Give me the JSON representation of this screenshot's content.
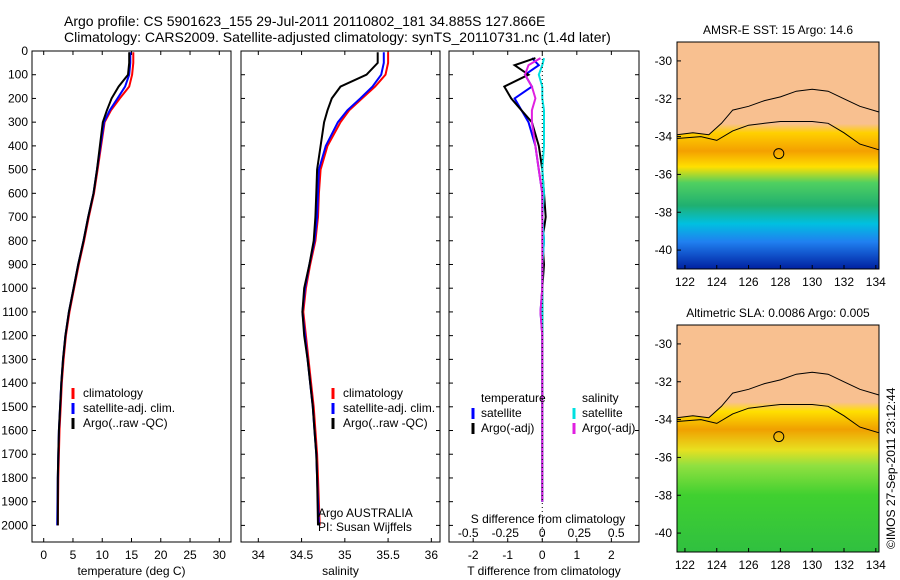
{
  "header": {
    "line1": "Argo profile: CS 5901623_155 29-Jul-2011 20110802_181 34.885S 127.866E",
    "line2": "Climatology: CARS2009. Satellite-adjusted climatology: synTS_20110731.nc (1.4d later)"
  },
  "stamp": "©IMOS 27-Sep-2011 23:12:44",
  "chart_data": [
    {
      "type": "line",
      "panel": "temperature",
      "xlabel": "temperature (deg C)",
      "ylabel": "",
      "xlim": [
        -2,
        32
      ],
      "ylim": [
        2070,
        0
      ],
      "xticks": [
        "0",
        "5",
        "10",
        "15",
        "20",
        "25",
        "30"
      ],
      "xtick_values": [
        0,
        5,
        10,
        15,
        20,
        25,
        30
      ],
      "yticks": [
        "0",
        "100",
        "200",
        "300",
        "400",
        "500",
        "600",
        "700",
        "800",
        "900",
        "1000",
        "1100",
        "1200",
        "1300",
        "1400",
        "1500",
        "1600",
        "1700",
        "1800",
        "1900",
        "2000"
      ],
      "ytick_values": [
        0,
        100,
        200,
        300,
        400,
        500,
        600,
        700,
        800,
        900,
        1000,
        1100,
        1200,
        1300,
        1400,
        1500,
        1600,
        1700,
        1800,
        1900,
        2000
      ],
      "legend": [
        "climatology",
        "satellite-adj. clim.",
        "Argo(..raw -QC)"
      ],
      "series": [
        {
          "color": "#ff0000",
          "x": [
            15.3,
            15.3,
            15.1,
            14.6,
            13.0,
            11.5,
            10.4,
            9.8,
            9.2,
            8.6,
            7.7,
            6.9,
            6.0,
            5.2,
            4.4,
            3.8,
            3.4,
            3.1,
            2.9,
            2.7,
            2.6,
            2.5,
            2.4
          ],
          "y": [
            5,
            50,
            100,
            150,
            200,
            250,
            300,
            400,
            500,
            600,
            700,
            800,
            900,
            1000,
            1100,
            1200,
            1300,
            1400,
            1500,
            1600,
            1700,
            1800,
            2000
          ]
        },
        {
          "color": "#0000ff",
          "x": [
            14.8,
            14.8,
            14.6,
            13.9,
            12.6,
            11.3,
            10.3,
            9.7,
            9.1,
            8.5,
            7.6,
            6.8,
            5.9,
            5.1,
            4.3,
            3.7,
            3.3,
            3.0,
            2.8,
            2.6,
            2.5,
            2.4,
            2.3
          ],
          "y": [
            5,
            50,
            100,
            150,
            200,
            250,
            300,
            400,
            500,
            600,
            700,
            800,
            900,
            1000,
            1100,
            1200,
            1300,
            1400,
            1500,
            1600,
            1700,
            1800,
            2000
          ]
        },
        {
          "color": "#000000",
          "x": [
            14.6,
            14.6,
            14.4,
            12.8,
            11.6,
            10.8,
            10.1,
            9.6,
            9.1,
            8.5,
            7.6,
            6.8,
            5.9,
            5.1,
            4.3,
            3.7,
            3.3,
            3.0,
            2.8,
            2.6,
            2.5,
            2.4,
            2.4
          ],
          "y": [
            5,
            50,
            100,
            150,
            200,
            250,
            300,
            400,
            500,
            600,
            700,
            800,
            900,
            1000,
            1100,
            1200,
            1300,
            1400,
            1500,
            1600,
            1700,
            1800,
            2000
          ]
        }
      ]
    },
    {
      "type": "line",
      "panel": "salinity",
      "xlabel": "salinity",
      "ylabel": "",
      "xlim": [
        33.8,
        36.1
      ],
      "ylim": [
        2070,
        0
      ],
      "xticks": [
        "34",
        "34.5",
        "35",
        "35.5",
        "36"
      ],
      "xtick_values": [
        34,
        34.5,
        35,
        35.5,
        36
      ],
      "legend": [
        "climatology",
        "satellite-adj. clim.",
        "Argo(..raw -QC)"
      ],
      "annotations": [
        "Argo AUSTRALIA",
        "PI: Susan Wijffels"
      ],
      "series": [
        {
          "color": "#ff0000",
          "x": [
            35.5,
            35.5,
            35.47,
            35.35,
            35.2,
            35.05,
            34.95,
            34.8,
            34.72,
            34.7,
            34.69,
            34.66,
            34.6,
            34.55,
            34.52,
            34.55,
            34.58,
            34.61,
            34.64,
            34.66,
            34.68,
            34.69,
            34.71
          ],
          "y": [
            5,
            50,
            100,
            150,
            200,
            250,
            300,
            400,
            500,
            600,
            700,
            800,
            900,
            1000,
            1100,
            1200,
            1300,
            1400,
            1500,
            1600,
            1700,
            1800,
            2000
          ]
        },
        {
          "color": "#0000ff",
          "x": [
            35.45,
            35.45,
            35.42,
            35.32,
            35.18,
            35.03,
            34.92,
            34.78,
            34.7,
            34.69,
            34.68,
            34.65,
            34.59,
            34.54,
            34.51,
            34.54,
            34.57,
            34.6,
            34.63,
            34.65,
            34.67,
            34.68,
            34.7
          ],
          "y": [
            5,
            50,
            100,
            150,
            200,
            250,
            300,
            400,
            500,
            600,
            700,
            800,
            900,
            1000,
            1100,
            1200,
            1300,
            1400,
            1500,
            1600,
            1700,
            1800,
            2000
          ]
        },
        {
          "color": "#000000",
          "x": [
            35.38,
            35.38,
            35.25,
            34.95,
            34.85,
            34.8,
            34.76,
            34.72,
            34.68,
            34.67,
            34.66,
            34.64,
            34.59,
            34.53,
            34.51,
            34.53,
            34.57,
            34.6,
            34.63,
            34.65,
            34.67,
            34.68,
            34.69
          ],
          "y": [
            5,
            50,
            100,
            150,
            200,
            250,
            300,
            400,
            500,
            600,
            700,
            800,
            900,
            1000,
            1100,
            1200,
            1300,
            1400,
            1500,
            1600,
            1700,
            1800,
            2000
          ]
        }
      ]
    },
    {
      "type": "line",
      "panel": "difference",
      "xlabel": "T difference from climatology",
      "xlabel_top": "S difference from climatology",
      "xlim": [
        -2.7,
        2.8
      ],
      "ylim": [
        2070,
        0
      ],
      "xticks": [
        "-2",
        "-1",
        "0",
        "1",
        "2"
      ],
      "xtick_values": [
        -2,
        -1,
        0,
        1,
        2
      ],
      "sticks": [
        "-0.5",
        "-0.25",
        "0",
        "0.25",
        "0.5"
      ],
      "stick_values": [
        -0.5,
        -0.25,
        0,
        0.25,
        0.5
      ],
      "legend_t": {
        "title": "temperature",
        "items": [
          "satellite",
          "Argo(-adj)"
        ]
      },
      "legend_s": {
        "title": "salinity",
        "items": [
          "satellite",
          "Argo(-adj)"
        ]
      },
      "series": [
        {
          "color": "#0000ff",
          "x": [
            -0.3,
            -0.1,
            -0.5,
            -0.3,
            -0.8,
            -0.6,
            -0.4,
            -0.2,
            -0.1,
            0.0,
            0.0,
            0.05,
            0.0,
            0.0,
            -0.05,
            0.0,
            0.0,
            0.0,
            0.0,
            0.0,
            0.0,
            0.0
          ],
          "y": [
            30,
            60,
            100,
            150,
            200,
            250,
            300,
            400,
            500,
            600,
            700,
            800,
            900,
            1000,
            1100,
            1200,
            1300,
            1400,
            1500,
            1600,
            1700,
            1900
          ]
        },
        {
          "color": "#000000",
          "x": [
            -0.2,
            -0.8,
            -0.4,
            -1.1,
            -0.9,
            -0.6,
            -0.3,
            -0.1,
            0.0,
            0.05,
            0.1,
            0.0,
            0.05,
            0.0,
            0.0,
            0.0,
            0.0,
            0.0,
            0.0,
            0.0,
            0.0,
            0.0
          ],
          "y": [
            30,
            60,
            100,
            150,
            200,
            250,
            300,
            400,
            500,
            600,
            700,
            800,
            900,
            1000,
            1100,
            1200,
            1300,
            1400,
            1500,
            1600,
            1700,
            1900
          ]
        },
        {
          "color": "#00e0e0",
          "x": [
            0.05,
            0.0,
            -0.1,
            0.0,
            0.0,
            0.05,
            0.05,
            0.05,
            0.0,
            0.05,
            0.0,
            0.05,
            0.0,
            0.0,
            0.0,
            0.0,
            0.0,
            0.0,
            0.0,
            0.0,
            0.0,
            0.0
          ],
          "y": [
            30,
            60,
            100,
            150,
            200,
            250,
            300,
            400,
            500,
            600,
            700,
            800,
            900,
            1000,
            1100,
            1200,
            1300,
            1400,
            1500,
            1600,
            1700,
            1900
          ]
        },
        {
          "color": "#e020e0",
          "x": [
            -0.05,
            -0.4,
            -0.5,
            -0.3,
            -0.2,
            -0.3,
            -0.3,
            -0.2,
            -0.1,
            0.0,
            0.0,
            0.0,
            0.0,
            0.0,
            -0.05,
            0.0,
            0.0,
            0.0,
            0.0,
            0.0,
            0.0,
            0.0
          ],
          "y": [
            30,
            60,
            100,
            150,
            200,
            250,
            300,
            400,
            500,
            600,
            700,
            800,
            900,
            1000,
            1100,
            1200,
            1300,
            1400,
            1500,
            1600,
            1700,
            1900
          ]
        }
      ]
    },
    {
      "type": "heatmap",
      "panel": "sst_map",
      "title": "AMSR-E SST: 15 Argo: 14.6",
      "xlim": [
        121.5,
        134.2
      ],
      "ylim": [
        -41,
        -29
      ],
      "xticks": [
        "122",
        "124",
        "126",
        "128",
        "130",
        "132",
        "134"
      ],
      "xtick_values": [
        122,
        124,
        126,
        128,
        130,
        132,
        134
      ],
      "yticks": [
        "-30",
        "-32",
        "-34",
        "-36",
        "-38",
        "-40"
      ],
      "ytick_values": [
        -30,
        -32,
        -34,
        -36,
        -38,
        -40
      ],
      "land_color": "#f8c090",
      "marker": {
        "lon": 127.9,
        "lat": -34.9
      }
    },
    {
      "type": "heatmap",
      "panel": "sla_map",
      "title": "Altimetric SLA: 0.0086 Argo: 0.005",
      "xlim": [
        121.5,
        134.2
      ],
      "ylim": [
        -41,
        -29
      ],
      "xticks": [
        "122",
        "124",
        "126",
        "128",
        "130",
        "132",
        "134"
      ],
      "xtick_values": [
        122,
        124,
        126,
        128,
        130,
        132,
        134
      ],
      "yticks": [
        "-30",
        "-32",
        "-34",
        "-36",
        "-38",
        "-40"
      ],
      "ytick_values": [
        -30,
        -32,
        -34,
        -36,
        -38,
        -40
      ],
      "land_color": "#f8c090",
      "marker": {
        "lon": 127.9,
        "lat": -34.9
      }
    }
  ]
}
